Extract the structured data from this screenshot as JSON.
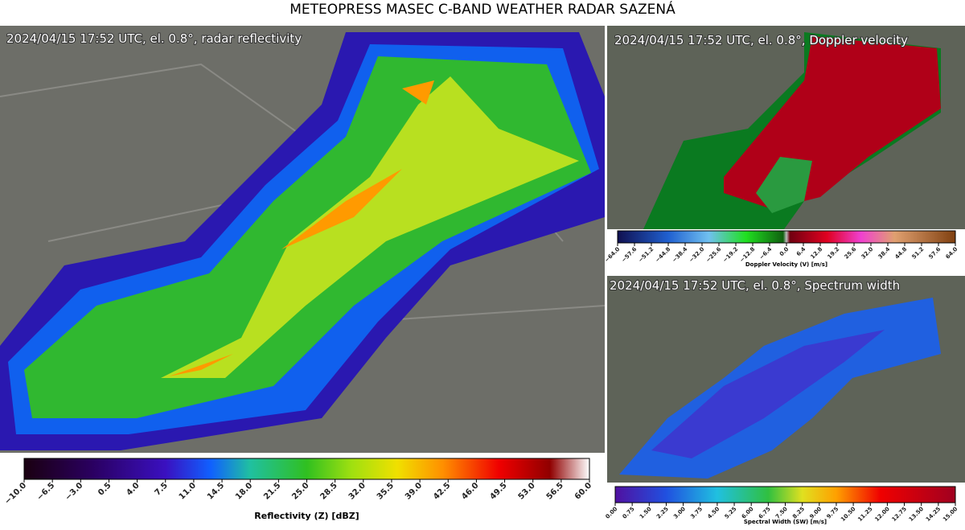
{
  "header": {
    "title": "METEOPRESS MASEC C-BAND WEATHER RADAR SAZENÁ"
  },
  "panels": [
    {
      "caption": "2024/04/15 17:52 UTC, el. 0.8°, radar reflectivity",
      "colorbar": {
        "label": "Reflectivity (Z) [dBZ]",
        "ticks": [
          "−10.0",
          "−6.5",
          "−3.0",
          "0.5",
          "4.0",
          "7.5",
          "11.0",
          "14.5",
          "18.0",
          "21.5",
          "25.0",
          "28.5",
          "32.0",
          "35.5",
          "39.0",
          "42.5",
          "46.0",
          "49.5",
          "53.0",
          "56.5",
          "60.0"
        ]
      }
    },
    {
      "caption": "2024/04/15 17:52 UTC, el. 0.8°, Doppler velocity",
      "colorbar": {
        "label": "Doppler Velocity (V) [m/s]",
        "ticks": [
          "−64.0",
          "−57.6",
          "−51.2",
          "−44.8",
          "−38.4",
          "−32.0",
          "−25.6",
          "−19.2",
          "−12.8",
          "−6.4",
          "0.0",
          "6.4",
          "12.8",
          "19.2",
          "25.6",
          "32.0",
          "38.4",
          "44.8",
          "51.2",
          "57.6",
          "64.0"
        ]
      }
    },
    {
      "caption": "2024/04/15 17:52 UTC, el. 0.8°, Spectrum width",
      "colorbar": {
        "label": "Spectral Width (SW) [m/s]",
        "ticks": [
          "0.00",
          "0.75",
          "1.50",
          "2.25",
          "3.00",
          "3.75",
          "4.50",
          "5.25",
          "6.00",
          "6.75",
          "7.50",
          "8.25",
          "9.00",
          "9.75",
          "10.50",
          "11.25",
          "12.00",
          "12.75",
          "13.50",
          "14.25",
          "15.00"
        ]
      }
    }
  ]
}
